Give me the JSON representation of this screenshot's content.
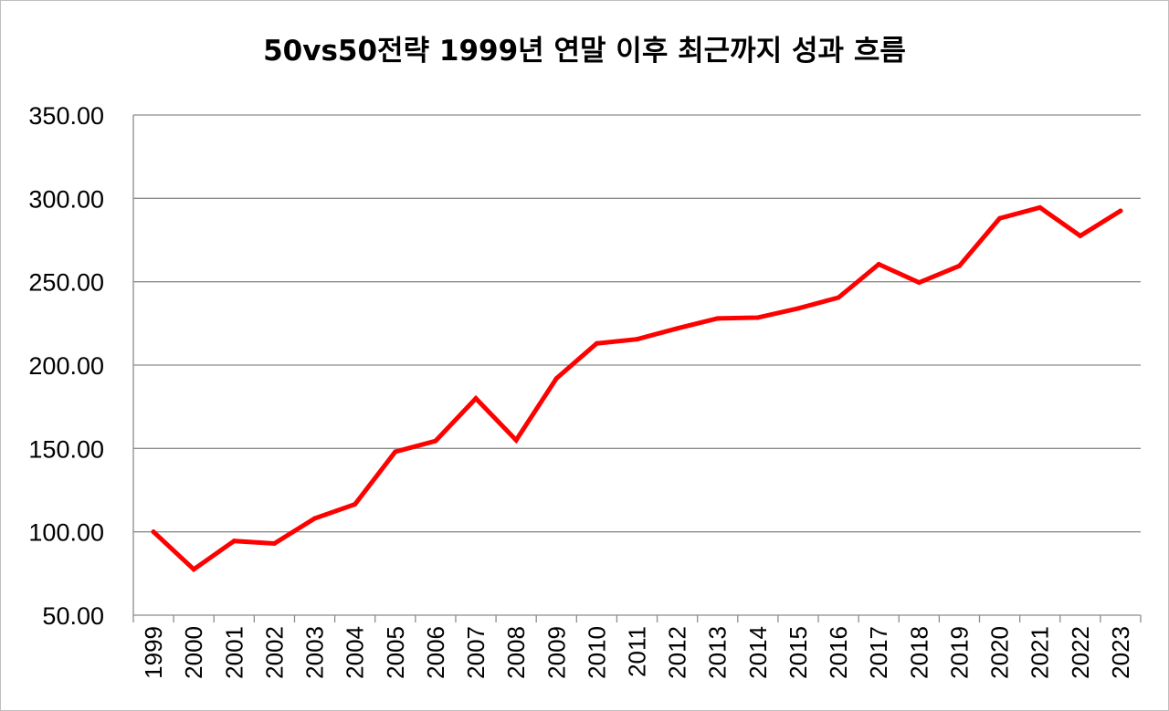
{
  "chart_data": {
    "type": "line",
    "title": "50vs50전략 1999년 연말 이후 최근까지 성과 흐름",
    "xlabel": "",
    "ylabel": "",
    "ylim": [
      50,
      350
    ],
    "y_ticks": [
      "50.00",
      "100.00",
      "150.00",
      "200.00",
      "250.00",
      "300.00",
      "350.00"
    ],
    "grid": true,
    "legend": "none",
    "categories": [
      "1999",
      "2000",
      "2001",
      "2002",
      "2003",
      "2004",
      "2005",
      "2006",
      "2007",
      "2008",
      "2009",
      "2010",
      "2011",
      "2012",
      "2013",
      "2014",
      "2015",
      "2016",
      "2017",
      "2018",
      "2019",
      "2020",
      "2021",
      "2022",
      "2023"
    ],
    "series": [
      {
        "color": "#ff0000",
        "values": [
          100,
          77.5,
          94.5,
          93,
          108,
          116.5,
          148,
          154.5,
          180,
          155,
          192,
          213,
          215.5,
          222,
          228,
          228.5,
          234,
          240.5,
          260.5,
          249.5,
          259.5,
          288,
          294.5,
          277.5,
          292.5
        ]
      }
    ]
  }
}
